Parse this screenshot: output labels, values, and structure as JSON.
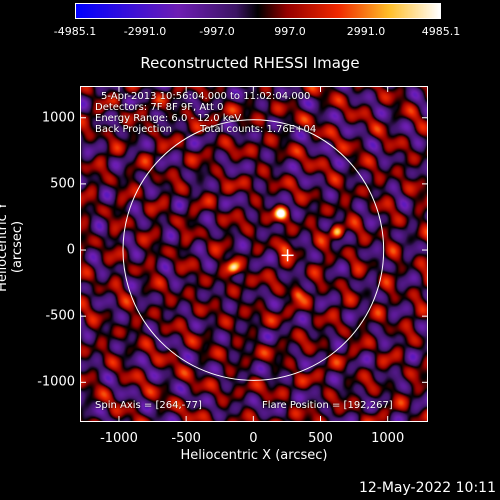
{
  "chart_data": {
    "type": "heatmap",
    "title": "Reconstructed RHESSI Image",
    "xlabel": "Heliocentric X (arcsec)",
    "ylabel": "Heliocentric Y (arcsec)",
    "xlim": [
      -1290,
      1300
    ],
    "ylim": [
      -1300,
      1240
    ],
    "x_ticks": [
      "-1000",
      "-500",
      "0",
      "500",
      "1000"
    ],
    "y_ticks": [
      "1000",
      "500",
      "0",
      "-500",
      "-1000"
    ],
    "colorbar": {
      "range": [
        -4985.1,
        4985.1
      ],
      "ticks": [
        "-4985.1",
        "-2991.0",
        "-997.0",
        "997.0",
        "2991.0",
        "4985.1"
      ]
    },
    "solar_disk_radius_arcsec": 970,
    "flare_marker": [
      255,
      -40
    ],
    "bright_sources": [
      {
        "x": 200,
        "y": 280,
        "level": 1.0
      },
      {
        "x": 620,
        "y": 140,
        "level": 0.85
      },
      {
        "x": -150,
        "y": -130,
        "level": 0.95
      },
      {
        "x": 320,
        "y": -330,
        "level": 0.55
      },
      {
        "x": 240,
        "y": 20,
        "level": 0.5
      }
    ]
  },
  "annotations": {
    "time_range": "5-Apr-2013 10:56:04.000 to 11:02:04.000",
    "detectors": "Detectors: 7F 8F 9F, Att 0",
    "energy_range": "Energy Range: 6.0 - 12.0 keV",
    "method": "Back Projection",
    "total_counts": "Total counts: 1.76E+04",
    "spin_axis": "Spin Axis = [264,-77]",
    "flare_position": "Flare Position = [192,267]"
  },
  "footer": {
    "date": "12-May-2022 10:11"
  },
  "colors": {
    "background": "#000000",
    "foreground": "#ffffff"
  }
}
